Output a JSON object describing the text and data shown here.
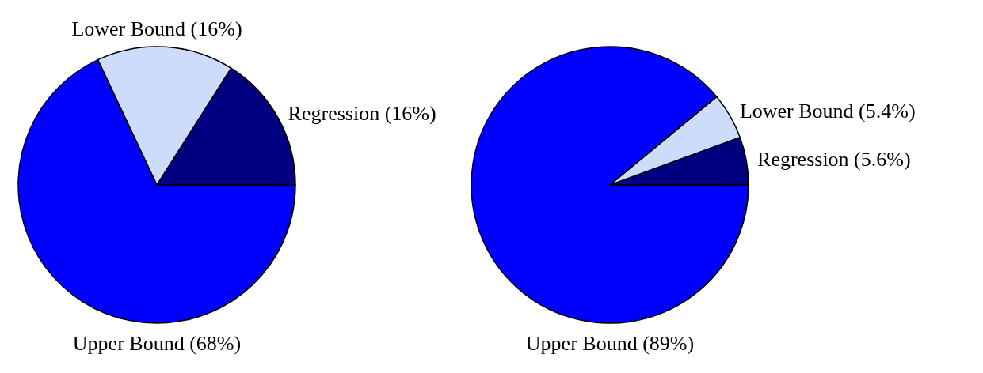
{
  "chart_data": [
    {
      "type": "pie",
      "categories": [
        "Regression (16%)",
        "Lower Bound (16%)",
        "Upper Bound (68%)"
      ],
      "values": [
        16,
        16,
        68
      ],
      "colors": [
        "#000080",
        "#ccdcfa",
        "#0000ff"
      ]
    },
    {
      "type": "pie",
      "categories": [
        "Regression (5.6%)",
        "Lower Bound (5.4%)",
        "Upper Bound (89%)"
      ],
      "values": [
        5.6,
        5.4,
        89
      ],
      "colors": [
        "#000080",
        "#ccdcfa",
        "#0000ff"
      ]
    }
  ]
}
